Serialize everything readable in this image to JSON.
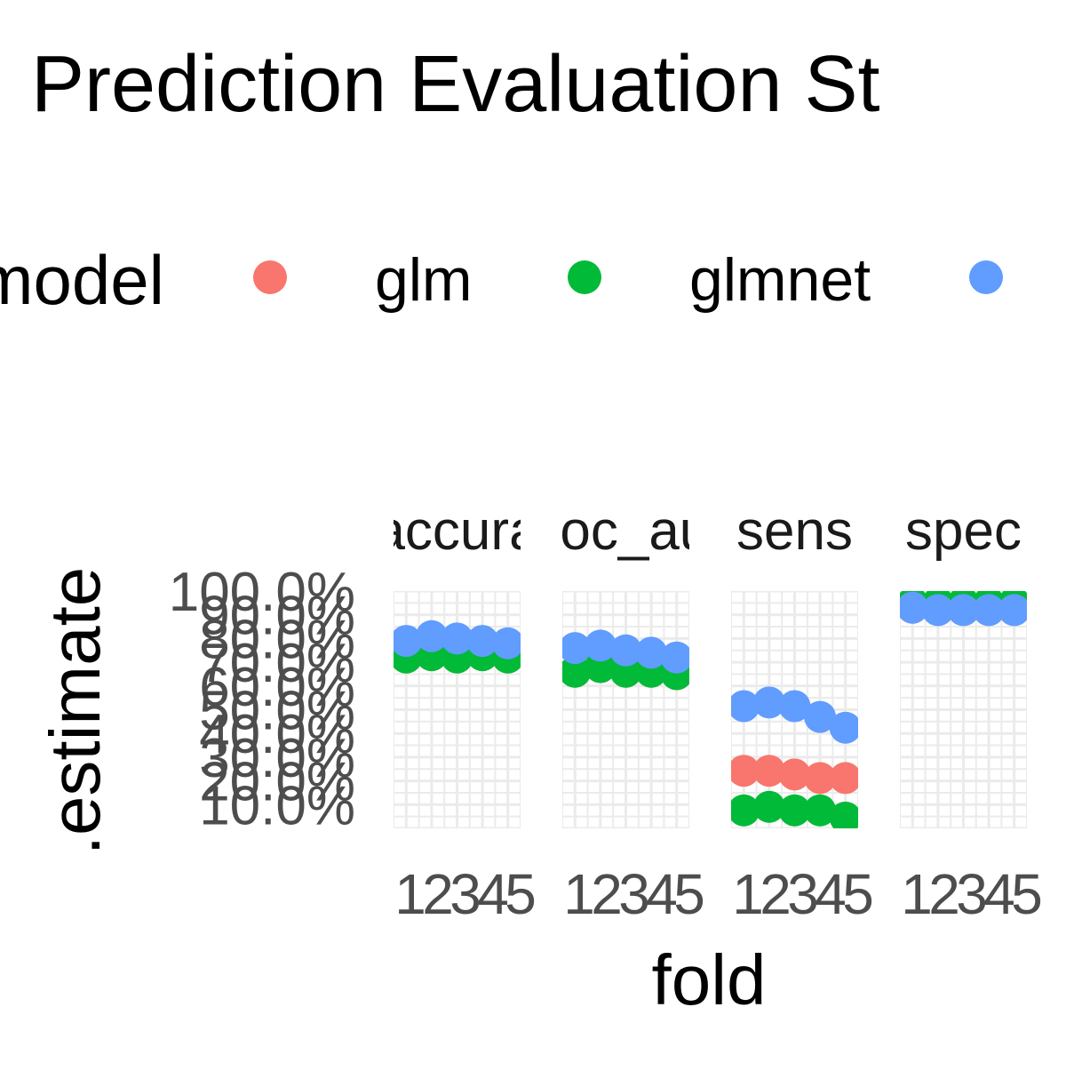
{
  "chart_data": {
    "type": "scatter",
    "title": "Prediction Evaluation St",
    "xlabel": "fold",
    "ylabel": ".estimate",
    "legend": {
      "title": "model",
      "position": "top",
      "entries": [
        {
          "name": "glm",
          "color": "#F8766D"
        },
        {
          "name": "glmnet",
          "color": "#00BA38"
        },
        {
          "name": "",
          "color": "#619CFF"
        }
      ]
    },
    "ylim": [
      0.0,
      1.0
    ],
    "y_tick_values": [
      1.0,
      0.9,
      0.8,
      0.7,
      0.6,
      0.5,
      0.4,
      0.3,
      0.2,
      0.1
    ],
    "y_tick_labels": [
      "100.0%",
      "90.0%",
      "80.0%",
      "70.0%",
      "60.0%",
      "50.0%",
      "40.0%",
      "30.0%",
      "20.0%",
      "10.0%"
    ],
    "x": [
      1,
      2,
      3,
      4,
      5
    ],
    "x_tick_labels": [
      "1",
      "2",
      "3",
      "4",
      "5"
    ],
    "grid": true,
    "facets": [
      {
        "label": "accura",
        "ylim": [
          0.0,
          1.0
        ],
        "series": [
          {
            "name": "glm",
            "values": [
              0.72,
              0.73,
              0.72,
              0.73,
              0.72
            ]
          },
          {
            "name": "glmnet",
            "values": [
              0.72,
              0.73,
              0.72,
              0.73,
              0.72
            ]
          },
          {
            "name": "",
            "values": [
              0.79,
              0.81,
              0.8,
              0.79,
              0.78
            ]
          }
        ]
      },
      {
        "label": "roc_au",
        "ylim": [
          0.0,
          1.0
        ],
        "series": [
          {
            "name": "glm",
            "values": [
              0.66,
              0.68,
              0.66,
              0.66,
              0.65
            ]
          },
          {
            "name": "glmnet",
            "values": [
              0.66,
              0.68,
              0.66,
              0.66,
              0.65
            ]
          },
          {
            "name": "",
            "values": [
              0.76,
              0.77,
              0.75,
              0.74,
              0.72
            ]
          }
        ]
      },
      {
        "label": "sens",
        "ylim": [
          0.0,
          0.66
        ],
        "series": [
          {
            "name": "glm",
            "values": [
              0.16,
              0.16,
              0.15,
              0.14,
              0.14
            ]
          },
          {
            "name": "glmnet",
            "values": [
              0.05,
              0.06,
              0.05,
              0.05,
              0.03
            ]
          },
          {
            "name": "",
            "values": [
              0.34,
              0.35,
              0.34,
              0.31,
              0.28
            ]
          }
        ]
      },
      {
        "label": "spec",
        "ylim": [
          0.0,
          1.0
        ],
        "series": [
          {
            "name": "glm",
            "values": [
              0.93,
              0.92,
              0.92,
              0.92,
              0.92
            ]
          },
          {
            "name": "glmnet",
            "values": [
              0.95,
              0.95,
              0.95,
              0.95,
              0.95
            ]
          },
          {
            "name": "",
            "values": [
              0.93,
              0.92,
              0.92,
              0.92,
              0.92
            ]
          }
        ]
      }
    ]
  }
}
